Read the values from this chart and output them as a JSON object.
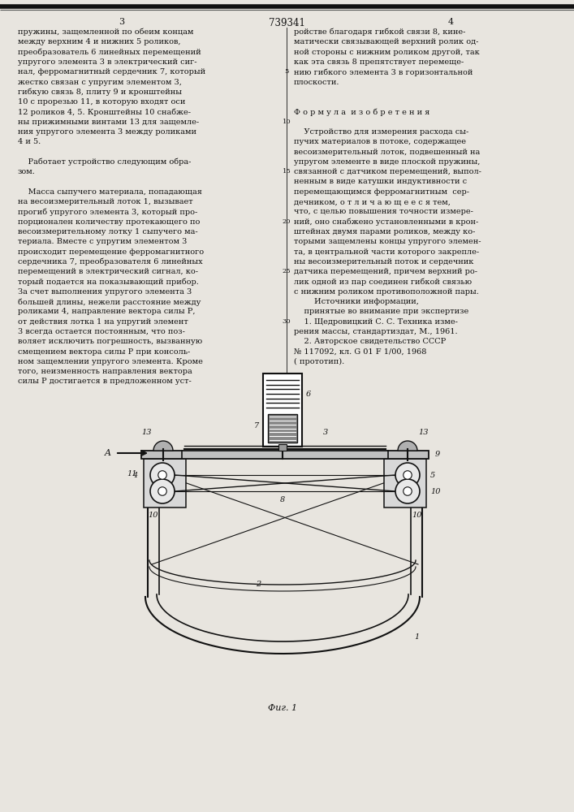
{
  "page_color": "#e8e5df",
  "top_line_color": "#111111",
  "header_page_num_left": "3",
  "header_patent_num": "739341",
  "header_page_num_right": "4",
  "col_left_lines": [
    "пружины, защемленной по обеим концам",
    "между верхним 4 и нижних 5 роликов,",
    "преобразователь 6 линейных перемещений",
    "упругого элемента 3 в электрический сиг-",
    "нал, ферромагнитный сердечник 7, который",
    "жестко связан с упругим элементом 3,",
    "гибкую связь 8, плиту 9 и кронштейны",
    "10 с прорезью 11, в которую входят оси",
    "12 роликов 4, 5. Кронштейны 10 снабже-",
    "ны прижимными винтами 13 для защемле-",
    "ния упругого элемента 3 между роликами",
    "4 и 5.",
    "",
    "    Работает устройство следующим обра-",
    "зом.",
    "",
    "    Масса сыпучего материала, попадающая",
    "на весоизмерительный лоток 1, вызывает",
    "прогиб упругого элемента 3, который про-",
    "порционален количеству протекающего по",
    "весоизмерительному лотку 1 сыпучего ма-",
    "териала. Вместе с упругим элементом 3",
    "происходит перемещение ферромагнитного",
    "сердечника 7, преобразователя 6 линейных",
    "перемещений в электрический сигнал, ко-",
    "торый подается на показывающий прибор.",
    "За счет выполнения упругого элемента 3",
    "большей длины, нежели расстояние между",
    "роликами 4, направление вектора силы Р,",
    "от действия лотка 1 на упругий элемент",
    "3 всегда остается постоянным, что поз-",
    "воляет исключить погрешность, вызванную",
    "смещением вектора силы Р при консоль-",
    "ном защемлении упругого элемента. Кроме",
    "того, неизменность направления вектора",
    "силы Р достигается в предложенном уст-"
  ],
  "line_numbers": [
    [
      4,
      "5"
    ],
    [
      9,
      "10"
    ],
    [
      14,
      "15"
    ],
    [
      19,
      "20"
    ],
    [
      24,
      "25"
    ],
    [
      29,
      "30"
    ]
  ],
  "col_right_lines": [
    "ройстве благодаря гибкой связи 8, кине-",
    "матически связывающей верхний ролик од-",
    "ной стороны с нижним роликом другой, так",
    "как эта связь 8 препятствует перемеще-",
    "нию гибкого элемента 3 в горизонтальной",
    "плоскости.",
    "",
    "",
    "Ф о р м у л а  и з о б р е т е н и я",
    "",
    "    Устройство для измерения расхода сы-",
    "пучих материалов в потоке, содержащее",
    "весоизмерительный лоток, подвешенный на",
    "упругом элементе в виде плоской пружины,",
    "связанной с датчиком перемещений, выпол-",
    "ненным в виде катушки индуктивности с",
    "перемещающимся ферромагнитным  сер-",
    "дечником, о т л и ч а ю щ е е с я тем,",
    "что, с целью повышения точности измере-",
    "ний, оно снабжено установленными в крон-",
    "штейнах двумя парами роликов, между ко-",
    "торыми защемлены концы упругого элемен-",
    "та, в центральной части которого закрепле-",
    "ны весоизмерительный поток и сердечник",
    "датчика перемещений, причем верхний ро-",
    "лик одной из пар соединен гибкой связью",
    "с нижним роликом противоположной пары.",
    "        Источники информации,",
    "    принятые во внимание при экспертизе",
    "    1. Щедровицкий С. С. Техника изме-",
    "рения массы, стандартиздат, М., 1961.",
    "    2. Авторское свидетельство СССР",
    "№ 117092, кл. G 01 F 1/00, 1968",
    "( прототип)."
  ],
  "figure_caption": "Фиг. 1",
  "text_color": "#111111",
  "line_color": "#111111",
  "font_size_body": 7.0,
  "font_size_header": 8.0
}
